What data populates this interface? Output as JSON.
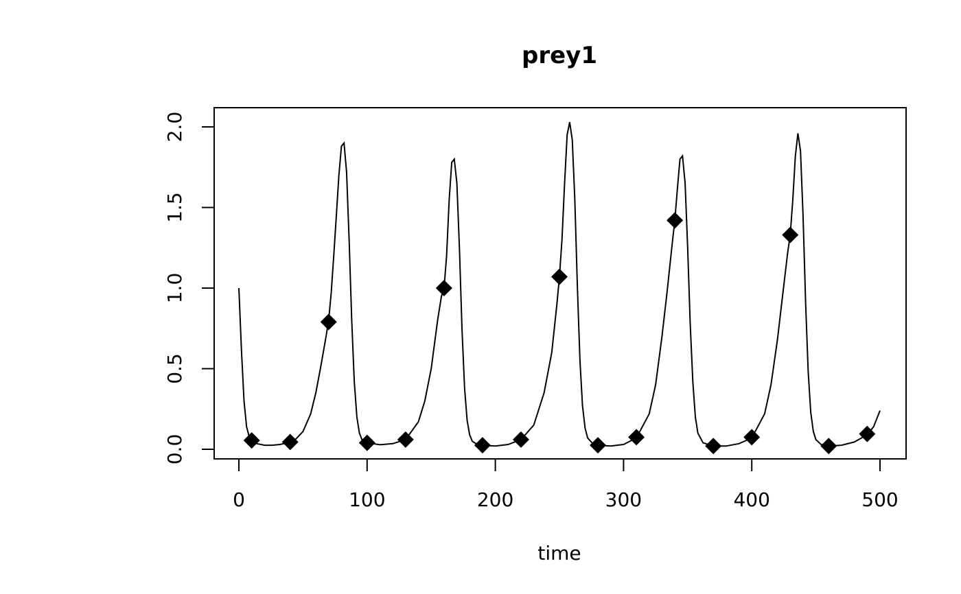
{
  "chart_data": {
    "type": "line",
    "title": "prey1",
    "xlabel": "time",
    "ylabel": "",
    "xlim": [
      0,
      500
    ],
    "ylim": [
      0,
      2.0
    ],
    "x_ticks": [
      "0",
      "100",
      "200",
      "300",
      "400",
      "500"
    ],
    "y_ticks": [
      "0.0",
      "0.5",
      "1.0",
      "1.5",
      "2.0"
    ],
    "grid": false,
    "legend": "none",
    "series": [
      {
        "kind": "line",
        "x": [
          0,
          2,
          4,
          6,
          8,
          10,
          14,
          20,
          26,
          32,
          38,
          44,
          50,
          56,
          60,
          64,
          68,
          70,
          72,
          74,
          76,
          78,
          80,
          82,
          84,
          86,
          88,
          90,
          92,
          94,
          96,
          100,
          110,
          120,
          130,
          140,
          145,
          150,
          155,
          158,
          160,
          162,
          164,
          166,
          168,
          170,
          172,
          174,
          176,
          178,
          180,
          182,
          186,
          190,
          200,
          210,
          220,
          230,
          238,
          244,
          248,
          250,
          252,
          254,
          256,
          258,
          260,
          262,
          264,
          266,
          268,
          270,
          272,
          276,
          280,
          290,
          300,
          310,
          320,
          325,
          330,
          334,
          338,
          340,
          342,
          344,
          346,
          348,
          350,
          352,
          354,
          356,
          358,
          362,
          370,
          380,
          390,
          400,
          410,
          415,
          420,
          424,
          428,
          430,
          432,
          434,
          436,
          438,
          440,
          442,
          444,
          446,
          448,
          450,
          454,
          460,
          470,
          480,
          490,
          495,
          500
        ],
        "y": [
          1.0,
          0.62,
          0.3,
          0.14,
          0.08,
          0.055,
          0.035,
          0.025,
          0.025,
          0.03,
          0.04,
          0.06,
          0.11,
          0.22,
          0.35,
          0.52,
          0.7,
          0.8,
          0.97,
          1.2,
          1.45,
          1.7,
          1.88,
          1.9,
          1.72,
          1.3,
          0.8,
          0.42,
          0.2,
          0.1,
          0.06,
          0.04,
          0.028,
          0.035,
          0.06,
          0.17,
          0.3,
          0.5,
          0.8,
          0.95,
          1.0,
          1.2,
          1.55,
          1.78,
          1.8,
          1.65,
          1.25,
          0.75,
          0.38,
          0.18,
          0.09,
          0.05,
          0.03,
          0.025,
          0.02,
          0.03,
          0.06,
          0.15,
          0.35,
          0.6,
          0.9,
          1.07,
          1.3,
          1.65,
          1.95,
          2.03,
          1.92,
          1.55,
          1.0,
          0.55,
          0.27,
          0.13,
          0.07,
          0.035,
          0.025,
          0.02,
          0.03,
          0.07,
          0.22,
          0.4,
          0.7,
          0.98,
          1.28,
          1.42,
          1.62,
          1.8,
          1.82,
          1.65,
          1.25,
          0.78,
          0.42,
          0.2,
          0.1,
          0.04,
          0.02,
          0.02,
          0.035,
          0.07,
          0.22,
          0.4,
          0.68,
          0.95,
          1.22,
          1.33,
          1.55,
          1.82,
          1.96,
          1.85,
          1.45,
          0.9,
          0.48,
          0.23,
          0.11,
          0.06,
          0.03,
          0.02,
          0.025,
          0.045,
          0.09,
          0.14,
          0.24
        ]
      },
      {
        "kind": "points",
        "x": [
          10,
          40,
          70,
          100,
          130,
          160,
          190,
          220,
          250,
          280,
          310,
          340,
          370,
          400,
          430,
          460,
          490
        ],
        "y": [
          0.055,
          0.045,
          0.79,
          0.04,
          0.06,
          1.0,
          0.025,
          0.06,
          1.07,
          0.025,
          0.075,
          1.42,
          0.02,
          0.075,
          1.33,
          0.02,
          0.095
        ]
      }
    ]
  }
}
